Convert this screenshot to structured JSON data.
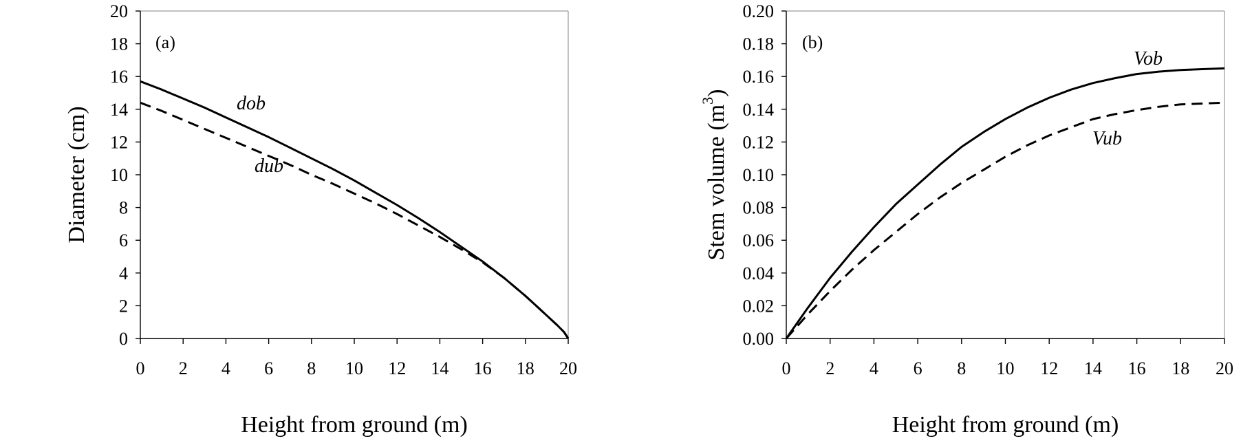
{
  "chart_data": [
    {
      "type": "line",
      "panel_label": "(a)",
      "xlabel": "Height from ground (m)",
      "ylabel": "Diameter (cm)",
      "xlim": [
        0,
        20
      ],
      "ylim": [
        0,
        20
      ],
      "xticks": [
        "0",
        "2",
        "4",
        "6",
        "8",
        "10",
        "12",
        "14",
        "16",
        "18",
        "20"
      ],
      "yticks": [
        "0",
        "2",
        "4",
        "6",
        "8",
        "10",
        "12",
        "14",
        "16",
        "18",
        "20"
      ],
      "grid": false,
      "x": [
        0,
        1,
        2,
        3,
        4,
        5,
        6,
        7,
        8,
        9,
        10,
        11,
        12,
        13,
        14,
        15,
        16,
        17,
        18,
        18.5,
        19,
        19.5,
        19.8,
        20
      ],
      "series": [
        {
          "name": "dob",
          "style": "solid",
          "values": [
            15.7,
            15.2,
            14.65,
            14.1,
            13.5,
            12.9,
            12.3,
            11.65,
            11.0,
            10.35,
            9.65,
            8.9,
            8.15,
            7.35,
            6.5,
            5.6,
            4.7,
            3.7,
            2.6,
            2.0,
            1.4,
            0.8,
            0.4,
            0.0
          ]
        },
        {
          "name": "dub",
          "style": "dashed",
          "values": [
            14.4,
            13.9,
            13.35,
            12.8,
            12.25,
            11.7,
            11.15,
            10.6,
            10.0,
            9.45,
            8.85,
            8.25,
            7.6,
            6.9,
            6.2,
            5.45,
            4.65,
            3.7,
            2.6,
            2.0,
            1.4,
            0.8,
            0.4,
            0.0
          ]
        }
      ]
    },
    {
      "type": "line",
      "panel_label": "(b)",
      "xlabel": "Height from ground (m)",
      "ylabel": "Stem volume (m",
      "ylabel_superscript": "3",
      "ylabel_close": ")",
      "xlim": [
        0,
        20
      ],
      "ylim": [
        0,
        0.2
      ],
      "xticks": [
        "0",
        "2",
        "4",
        "6",
        "8",
        "10",
        "12",
        "14",
        "16",
        "18",
        "20"
      ],
      "yticks": [
        "0.00",
        "0.02",
        "0.04",
        "0.06",
        "0.08",
        "0.10",
        "0.12",
        "0.14",
        "0.16",
        "0.18",
        "0.20"
      ],
      "grid": false,
      "x": [
        0,
        1,
        2,
        3,
        4,
        5,
        6,
        7,
        8,
        9,
        10,
        11,
        12,
        13,
        14,
        15,
        16,
        17,
        18,
        19,
        20
      ],
      "series": [
        {
          "name": "Vob",
          "style": "solid",
          "values": [
            0.0,
            0.019,
            0.037,
            0.053,
            0.068,
            0.082,
            0.094,
            0.106,
            0.117,
            0.126,
            0.134,
            0.141,
            0.147,
            0.152,
            0.156,
            0.159,
            0.1615,
            0.163,
            0.164,
            0.1645,
            0.165
          ]
        },
        {
          "name": "Vub",
          "style": "dashed",
          "values": [
            0.0,
            0.015,
            0.029,
            0.042,
            0.054,
            0.065,
            0.076,
            0.086,
            0.095,
            0.103,
            0.111,
            0.118,
            0.124,
            0.129,
            0.134,
            0.137,
            0.1395,
            0.1415,
            0.143,
            0.1435,
            0.144
          ]
        }
      ]
    }
  ]
}
